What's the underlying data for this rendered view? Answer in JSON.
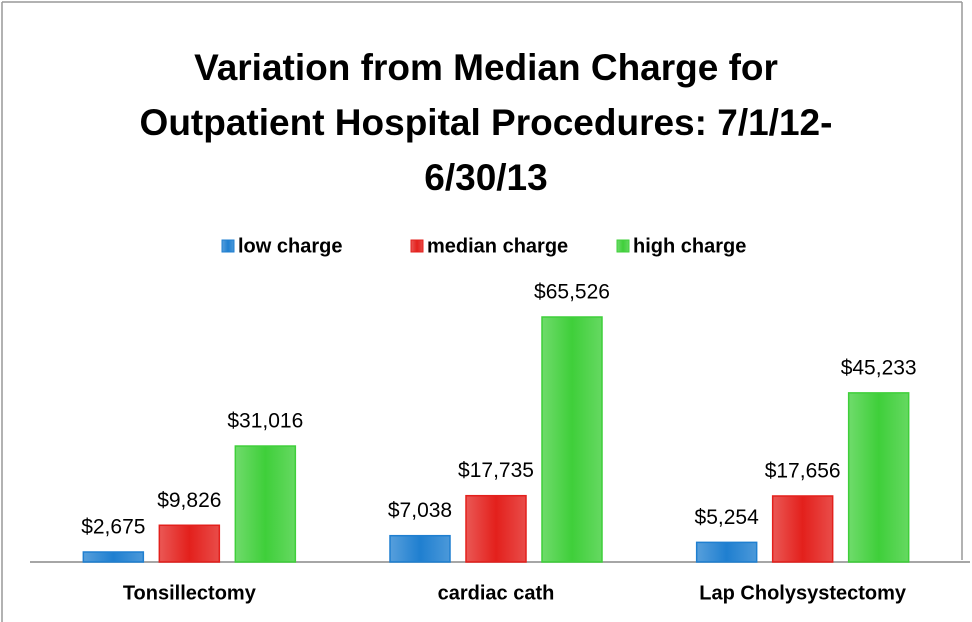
{
  "chart_data": {
    "type": "bar",
    "title": "Variation from Median Charge for Outpatient Hospital Procedures: 7/1/12-6/30/13",
    "categories": [
      "Tonsillectomy",
      "cardiac cath",
      "Lap Cholysystectomy"
    ],
    "series": [
      {
        "name": "low charge",
        "color": "#1f7fd0",
        "values": [
          2675,
          7038,
          5254
        ],
        "value_labels": [
          "$2,675",
          "$7,038",
          "$5,254"
        ]
      },
      {
        "name": "median charge",
        "color": "#e3201c",
        "values": [
          9826,
          17735,
          17656
        ],
        "value_labels": [
          "$9,826",
          "$17,735",
          "$17,656"
        ]
      },
      {
        "name": "high charge",
        "color": "#3fcf3a",
        "values": [
          31016,
          65526,
          45233
        ],
        "value_labels": [
          "$31,016",
          "$65,526",
          "$45,233"
        ]
      }
    ],
    "legend": "top"
  }
}
